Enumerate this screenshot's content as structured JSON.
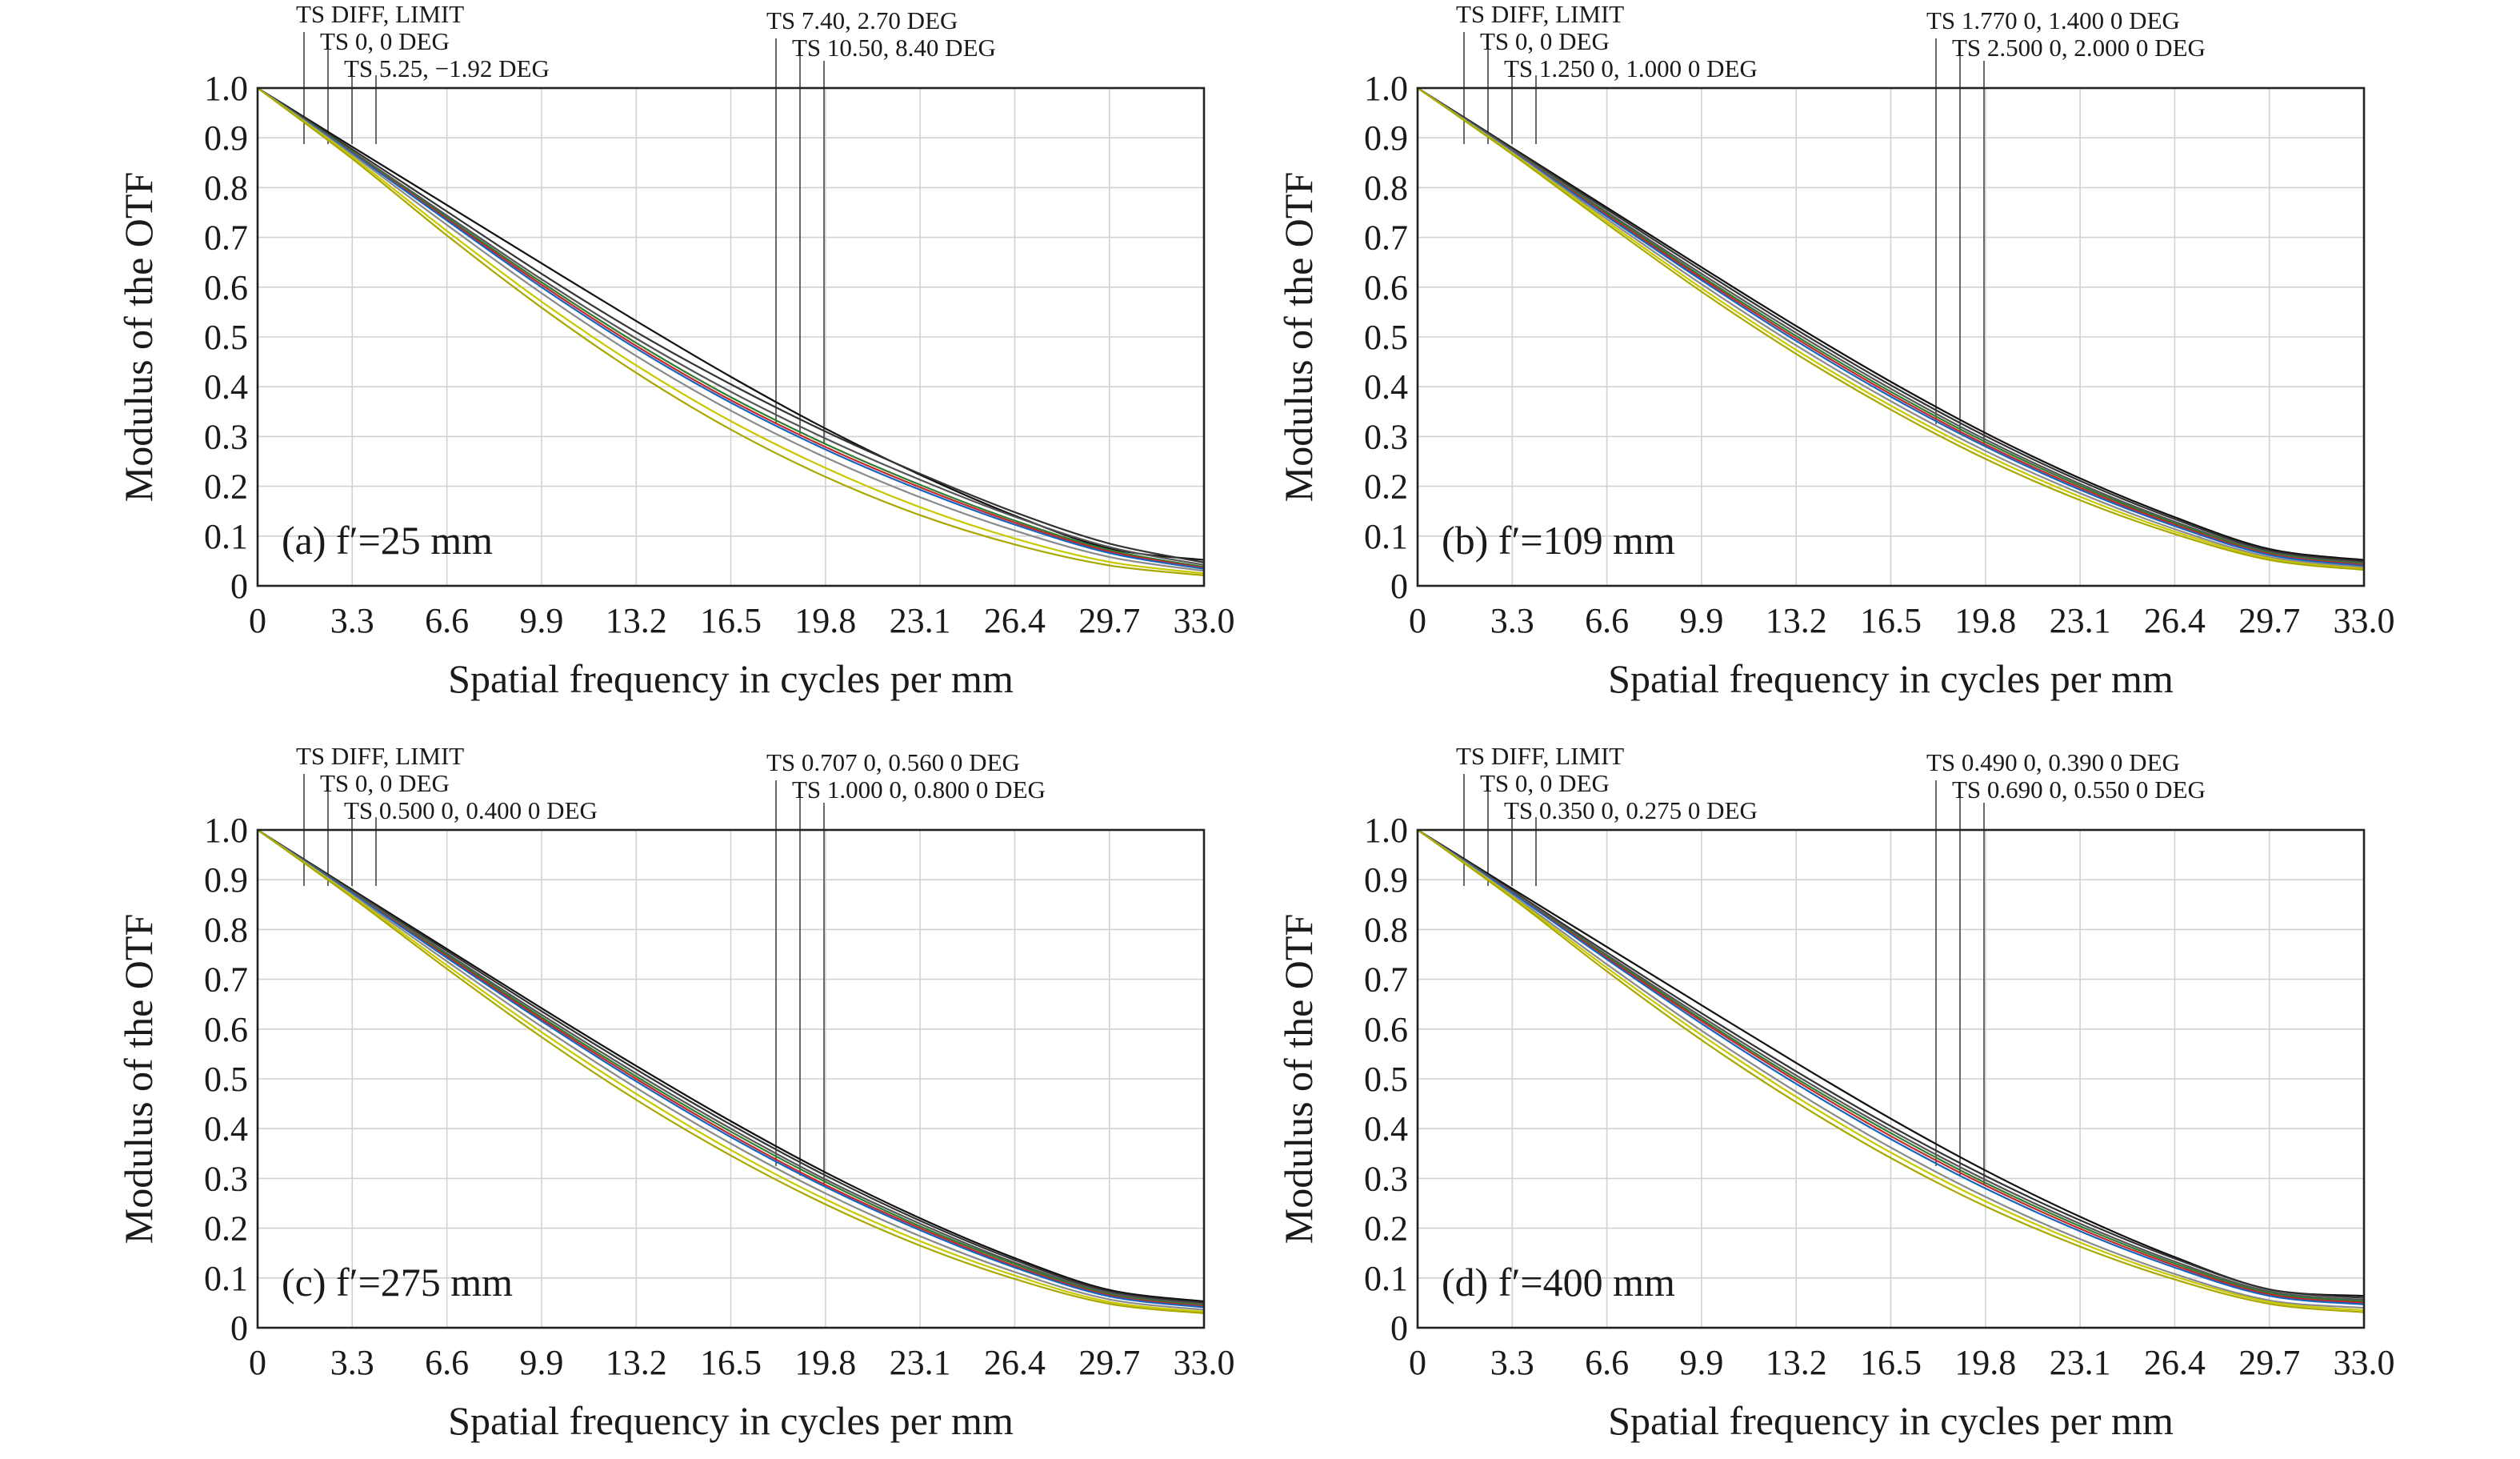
{
  "chart_data": [
    {
      "type": "line",
      "panel_label": "(a) f′=25 mm",
      "xlabel": "Spatial frequency in cycles per mm",
      "ylabel": "Modulus of the OTF",
      "xlim": [
        0,
        33
      ],
      "ylim": [
        0,
        1
      ],
      "xticks": [
        "0",
        "3.3",
        "6.6",
        "9.9",
        "13.2",
        "16.5",
        "19.8",
        "23.1",
        "26.4",
        "29.7",
        "33.0"
      ],
      "yticks": [
        "0",
        "0.1",
        "0.2",
        "0.3",
        "0.4",
        "0.5",
        "0.6",
        "0.7",
        "0.8",
        "0.9",
        "1.0"
      ],
      "grid": true,
      "legend_entries": [
        "TS DIFF, LIMIT",
        "TS 0, 0 DEG",
        "TS 5.25, −1.92 DEG",
        "TS 7.40, 2.70 DEG",
        "TS 10.50, 8.40 DEG"
      ],
      "x": [
        0,
        3.3,
        6.6,
        9.9,
        13.2,
        16.5,
        19.8,
        23.1,
        26.4,
        29.7,
        33
      ],
      "series": [
        {
          "color": "#111111",
          "values": [
            1,
            0.882,
            0.765,
            0.648,
            0.532,
            0.42,
            0.316,
            0.223,
            0.141,
            0.075,
            0.052
          ]
        },
        {
          "color": "#333333",
          "values": [
            1,
            0.877,
            0.752,
            0.627,
            0.51,
            0.405,
            0.31,
            0.225,
            0.148,
            0.085,
            0.047
          ]
        },
        {
          "color": "#555555",
          "values": [
            1,
            0.873,
            0.744,
            0.616,
            0.497,
            0.39,
            0.296,
            0.213,
            0.139,
            0.078,
            0.042
          ]
        },
        {
          "color": "#2e7d32",
          "values": [
            1,
            0.872,
            0.74,
            0.61,
            0.488,
            0.379,
            0.285,
            0.203,
            0.131,
            0.072,
            0.038
          ]
        },
        {
          "color": "#c62828",
          "values": [
            1,
            0.87,
            0.737,
            0.605,
            0.482,
            0.373,
            0.279,
            0.198,
            0.127,
            0.069,
            0.036
          ]
        },
        {
          "color": "#1565c0",
          "values": [
            1,
            0.869,
            0.734,
            0.6,
            0.477,
            0.368,
            0.274,
            0.193,
            0.123,
            0.066,
            0.034
          ]
        },
        {
          "color": "#8a8a8a",
          "values": [
            1,
            0.866,
            0.725,
            0.588,
            0.462,
            0.352,
            0.258,
            0.178,
            0.111,
            0.058,
            0.03
          ]
        },
        {
          "color": "#c8c800",
          "values": [
            1,
            0.862,
            0.713,
            0.571,
            0.443,
            0.331,
            0.237,
            0.158,
            0.095,
            0.048,
            0.025
          ]
        },
        {
          "color": "#a8a800",
          "values": [
            1,
            0.858,
            0.704,
            0.559,
            0.428,
            0.314,
            0.219,
            0.142,
            0.083,
            0.041,
            0.021
          ]
        }
      ]
    },
    {
      "type": "line",
      "panel_label": "(b) f′=109 mm",
      "xlabel": "Spatial frequency in cycles per mm",
      "ylabel": "Modulus of the OTF",
      "xlim": [
        0,
        33
      ],
      "ylim": [
        0,
        1
      ],
      "xticks": [
        "0",
        "3.3",
        "6.6",
        "9.9",
        "13.2",
        "16.5",
        "19.8",
        "23.1",
        "26.4",
        "29.7",
        "33.0"
      ],
      "yticks": [
        "0",
        "0.1",
        "0.2",
        "0.3",
        "0.4",
        "0.5",
        "0.6",
        "0.7",
        "0.8",
        "0.9",
        "1.0"
      ],
      "grid": true,
      "legend_entries": [
        "TS DIFF, LIMIT",
        "TS 0, 0 DEG",
        "TS 1.250 0, 1.000 0 DEG",
        "TS 1.770 0, 1.400 0 DEG",
        "TS 2.500 0, 2.000 0 DEG"
      ],
      "x": [
        0,
        3.3,
        6.6,
        9.9,
        13.2,
        16.5,
        19.8,
        23.1,
        26.4,
        29.7,
        33
      ],
      "series": [
        {
          "color": "#111111",
          "values": [
            1,
            0.88,
            0.76,
            0.64,
            0.522,
            0.41,
            0.307,
            0.216,
            0.138,
            0.074,
            0.052
          ]
        },
        {
          "color": "#333333",
          "values": [
            1,
            0.878,
            0.756,
            0.634,
            0.515,
            0.403,
            0.301,
            0.211,
            0.134,
            0.071,
            0.049
          ]
        },
        {
          "color": "#555555",
          "values": [
            1,
            0.876,
            0.751,
            0.627,
            0.508,
            0.396,
            0.294,
            0.205,
            0.129,
            0.068,
            0.046
          ]
        },
        {
          "color": "#2e7d32",
          "values": [
            1,
            0.875,
            0.748,
            0.622,
            0.502,
            0.39,
            0.289,
            0.201,
            0.126,
            0.066,
            0.044
          ]
        },
        {
          "color": "#c62828",
          "values": [
            1,
            0.874,
            0.745,
            0.618,
            0.497,
            0.385,
            0.284,
            0.197,
            0.123,
            0.064,
            0.042
          ]
        },
        {
          "color": "#1565c0",
          "values": [
            1,
            0.873,
            0.742,
            0.614,
            0.492,
            0.38,
            0.28,
            0.193,
            0.12,
            0.062,
            0.04
          ]
        },
        {
          "color": "#8a8a8a",
          "values": [
            1,
            0.871,
            0.737,
            0.606,
            0.483,
            0.371,
            0.271,
            0.186,
            0.114,
            0.058,
            0.037
          ]
        },
        {
          "color": "#c8c800",
          "values": [
            1,
            0.869,
            0.732,
            0.598,
            0.474,
            0.362,
            0.263,
            0.179,
            0.109,
            0.055,
            0.034
          ]
        },
        {
          "color": "#a8a800",
          "values": [
            1,
            0.867,
            0.727,
            0.591,
            0.466,
            0.354,
            0.255,
            0.172,
            0.104,
            0.052,
            0.032
          ]
        }
      ]
    },
    {
      "type": "line",
      "panel_label": "(c) f′=275 mm",
      "xlabel": "Spatial frequency in cycles per mm",
      "ylabel": "Modulus of the OTF",
      "xlim": [
        0,
        33
      ],
      "ylim": [
        0,
        1
      ],
      "xticks": [
        "0",
        "3.3",
        "6.6",
        "9.9",
        "13.2",
        "16.5",
        "19.8",
        "23.1",
        "26.4",
        "29.7",
        "33.0"
      ],
      "yticks": [
        "0",
        "0.1",
        "0.2",
        "0.3",
        "0.4",
        "0.5",
        "0.6",
        "0.7",
        "0.8",
        "0.9",
        "1.0"
      ],
      "grid": true,
      "legend_entries": [
        "TS DIFF, LIMIT",
        "TS 0, 0 DEG",
        "TS 0.500 0, 0.400 0 DEG",
        "TS 0.707 0, 0.560 0 DEG",
        "TS 1.000 0, 0.800 0 DEG"
      ],
      "x": [
        0,
        3.3,
        6.6,
        9.9,
        13.2,
        16.5,
        19.8,
        23.1,
        26.4,
        29.7,
        33
      ],
      "series": [
        {
          "color": "#111111",
          "values": [
            1,
            0.88,
            0.761,
            0.642,
            0.526,
            0.415,
            0.312,
            0.22,
            0.14,
            0.076,
            0.053
          ]
        },
        {
          "color": "#333333",
          "values": [
            1,
            0.878,
            0.757,
            0.636,
            0.519,
            0.408,
            0.306,
            0.215,
            0.136,
            0.073,
            0.05
          ]
        },
        {
          "color": "#555555",
          "values": [
            1,
            0.876,
            0.752,
            0.629,
            0.511,
            0.4,
            0.298,
            0.209,
            0.131,
            0.07,
            0.047
          ]
        },
        {
          "color": "#2e7d32",
          "values": [
            1,
            0.875,
            0.749,
            0.624,
            0.505,
            0.394,
            0.293,
            0.204,
            0.128,
            0.067,
            0.045
          ]
        },
        {
          "color": "#c62828",
          "values": [
            1,
            0.874,
            0.746,
            0.62,
            0.5,
            0.388,
            0.287,
            0.2,
            0.124,
            0.065,
            0.043
          ]
        },
        {
          "color": "#1565c0",
          "values": [
            1,
            0.873,
            0.743,
            0.616,
            0.495,
            0.383,
            0.283,
            0.196,
            0.121,
            0.063,
            0.041
          ]
        },
        {
          "color": "#8a8a8a",
          "values": [
            1,
            0.87,
            0.736,
            0.605,
            0.482,
            0.37,
            0.27,
            0.184,
            0.112,
            0.057,
            0.036
          ]
        },
        {
          "color": "#c8c800",
          "values": [
            1,
            0.867,
            0.728,
            0.594,
            0.47,
            0.357,
            0.258,
            0.174,
            0.105,
            0.052,
            0.032
          ]
        },
        {
          "color": "#a8a800",
          "values": [
            1,
            0.864,
            0.721,
            0.584,
            0.458,
            0.346,
            0.248,
            0.165,
            0.098,
            0.048,
            0.029
          ]
        }
      ]
    },
    {
      "type": "line",
      "panel_label": "(d) f′=400 mm",
      "xlabel": "Spatial frequency in cycles per mm",
      "ylabel": "Modulus of the OTF",
      "xlim": [
        0,
        33
      ],
      "ylim": [
        0,
        1
      ],
      "xticks": [
        "0",
        "3.3",
        "6.6",
        "9.9",
        "13.2",
        "16.5",
        "19.8",
        "23.1",
        "26.4",
        "29.7",
        "33.0"
      ],
      "yticks": [
        "0",
        "0.1",
        "0.2",
        "0.3",
        "0.4",
        "0.5",
        "0.6",
        "0.7",
        "0.8",
        "0.9",
        "1.0"
      ],
      "grid": true,
      "legend_entries": [
        "TS DIFF, LIMIT",
        "TS 0, 0 DEG",
        "TS 0.350 0, 0.275 0 DEG",
        "TS 0.490 0, 0.390 0 DEG",
        "TS 0.690 0, 0.550 0 DEG"
      ],
      "x": [
        0,
        3.3,
        6.6,
        9.9,
        13.2,
        16.5,
        19.8,
        23.1,
        26.4,
        29.7,
        33
      ],
      "series": [
        {
          "color": "#111111",
          "values": [
            1,
            0.882,
            0.765,
            0.648,
            0.532,
            0.42,
            0.316,
            0.223,
            0.142,
            0.077,
            0.064
          ]
        },
        {
          "color": "#333333",
          "values": [
            1,
            0.878,
            0.754,
            0.632,
            0.515,
            0.405,
            0.305,
            0.216,
            0.139,
            0.077,
            0.06
          ]
        },
        {
          "color": "#555555",
          "values": [
            1,
            0.876,
            0.749,
            0.625,
            0.507,
            0.397,
            0.297,
            0.209,
            0.133,
            0.073,
            0.056
          ]
        },
        {
          "color": "#2e7d32",
          "values": [
            1,
            0.875,
            0.746,
            0.62,
            0.501,
            0.391,
            0.291,
            0.204,
            0.129,
            0.07,
            0.053
          ]
        },
        {
          "color": "#c62828",
          "values": [
            1,
            0.874,
            0.743,
            0.616,
            0.496,
            0.385,
            0.286,
            0.199,
            0.125,
            0.067,
            0.05
          ]
        },
        {
          "color": "#1565c0",
          "values": [
            1,
            0.873,
            0.74,
            0.611,
            0.49,
            0.379,
            0.28,
            0.194,
            0.121,
            0.064,
            0.047
          ]
        },
        {
          "color": "#8a8a8a",
          "values": [
            1,
            0.869,
            0.73,
            0.597,
            0.474,
            0.362,
            0.263,
            0.178,
            0.108,
            0.055,
            0.04
          ]
        },
        {
          "color": "#c8c800",
          "values": [
            1,
            0.866,
            0.723,
            0.588,
            0.464,
            0.352,
            0.254,
            0.171,
            0.103,
            0.052,
            0.035
          ]
        },
        {
          "color": "#a8a800",
          "values": [
            1,
            0.863,
            0.716,
            0.578,
            0.453,
            0.341,
            0.244,
            0.163,
            0.097,
            0.048,
            0.031
          ]
        }
      ]
    }
  ]
}
